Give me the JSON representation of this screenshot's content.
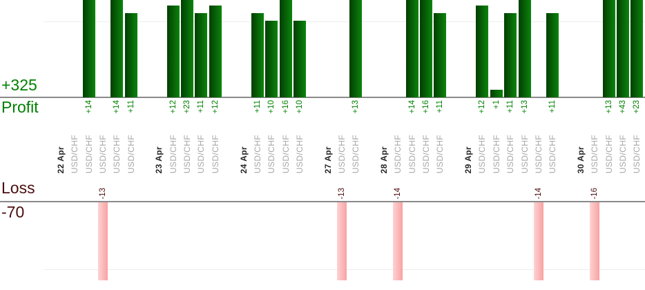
{
  "chart_data": {
    "type": "bar",
    "orientation": "vertical",
    "description": "Per-trade profit and loss bar chart, profit bars above upper baseline, loss bars below lower baseline, grouped by date",
    "profit": {
      "label": "Profit",
      "total_label": "+325",
      "total": 325
    },
    "loss": {
      "label": "Loss",
      "total_label": "-70",
      "total": -70
    },
    "groups": [
      {
        "date": "22 Apr",
        "trades": [
          {
            "pair": "USD/CHF",
            "value": null,
            "label": ""
          },
          {
            "pair": "USD/CHF",
            "value": 14,
            "label": "+14"
          },
          {
            "pair": "USD/CHF",
            "value": -13,
            "label": "-13"
          },
          {
            "pair": "USD/CHF",
            "value": 14,
            "label": "+14"
          },
          {
            "pair": "USD/CHF",
            "value": 11,
            "label": "+11"
          }
        ]
      },
      {
        "date": "23 Apr",
        "trades": [
          {
            "pair": "USD/CHF",
            "value": 12,
            "label": "+12"
          },
          {
            "pair": "USD/CHF",
            "value": 23,
            "label": "+23"
          },
          {
            "pair": "USD/CHF",
            "value": 11,
            "label": "+11"
          },
          {
            "pair": "USD/CHF",
            "value": 12,
            "label": "+12"
          }
        ]
      },
      {
        "date": "24 Apr",
        "trades": [
          {
            "pair": "USD/CHF",
            "value": 11,
            "label": "+11"
          },
          {
            "pair": "USD/CHF",
            "value": 10,
            "label": "+10"
          },
          {
            "pair": "USD/CHF",
            "value": 16,
            "label": "+16"
          },
          {
            "pair": "USD/CHF",
            "value": 10,
            "label": "+10"
          }
        ]
      },
      {
        "date": "27 Apr",
        "trades": [
          {
            "pair": "USD/CHF",
            "value": -13,
            "label": "-13"
          },
          {
            "pair": "USD/CHF",
            "value": 13,
            "label": "+13"
          }
        ]
      },
      {
        "date": "28 Apr",
        "trades": [
          {
            "pair": "USD/CHF",
            "value": -14,
            "label": "-14"
          },
          {
            "pair": "USD/CHF",
            "value": 14,
            "label": "+14"
          },
          {
            "pair": "USD/CHF",
            "value": 16,
            "label": "+16"
          },
          {
            "pair": "USD/CHF",
            "value": 11,
            "label": "+11"
          }
        ]
      },
      {
        "date": "29 Apr",
        "trades": [
          {
            "pair": "USD/CHF",
            "value": 12,
            "label": "+12"
          },
          {
            "pair": "USD/CHF",
            "value": 1,
            "label": "+1"
          },
          {
            "pair": "USD/CHF",
            "value": 11,
            "label": "+11"
          },
          {
            "pair": "USD/CHF",
            "value": 13,
            "label": "+13"
          },
          {
            "pair": "USD/CHF",
            "value": -14,
            "label": "-14"
          },
          {
            "pair": "USD/CHF",
            "value": 11,
            "label": "+11"
          }
        ]
      },
      {
        "date": "30 Apr",
        "trades": [
          {
            "pair": "USD/CHF",
            "value": -16,
            "label": "-16"
          },
          {
            "pair": "USD/CHF",
            "value": 13,
            "label": "+13"
          },
          {
            "pair": "USD/CHF",
            "value": 43,
            "label": "+43"
          },
          {
            "pair": "USD/CHF",
            "value": 23,
            "label": "+23"
          }
        ]
      }
    ],
    "colors": {
      "profit_text": "#008000",
      "loss_text": "#4c0d0d",
      "pair_text": "#a6a6a6",
      "date_text": "#262626",
      "profit_bar_dark": "#023e02",
      "profit_bar_light": "#0c840c",
      "loss_bar_light": "#fdd3d3",
      "loss_bar_dark": "#f8a2a2",
      "axis_line": "#8a8a8a",
      "gridline": "#ededed"
    },
    "layout_hints": {
      "gridlines": "light horizontal gridlines",
      "profit_bars_clipped_at_top": true,
      "loss_bars_clipped_at_bottom": true,
      "x_labels_rotated_90deg": true
    }
  }
}
